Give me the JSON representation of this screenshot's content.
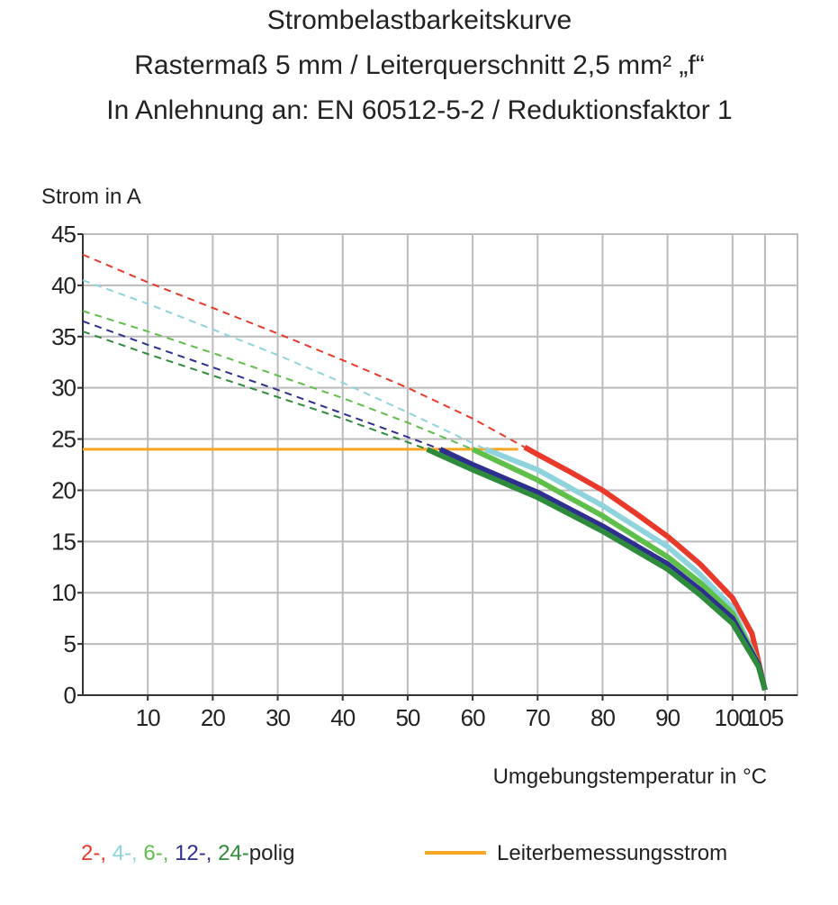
{
  "chart_data": {
    "type": "line",
    "title": [
      "Strombelastbarkeitskurve",
      "Rastermaß 5 mm / Leiterquerschnitt 2,5 mm² „f“",
      "In Anlehnung an: EN 60512-5-2 / Reduktionsfaktor 1"
    ],
    "y_label": "Strom in A",
    "x_label": "Umgebungstemperatur in °C",
    "xlim": [
      0,
      110
    ],
    "xticks": [
      10,
      20,
      30,
      40,
      50,
      60,
      70,
      80,
      90,
      100,
      105
    ],
    "ylim": [
      0,
      45
    ],
    "yticks": [
      0,
      5,
      10,
      15,
      20,
      25,
      30,
      35,
      40,
      45
    ],
    "grid": true,
    "legend_suffix": "polig",
    "series": [
      {
        "name": "2-,",
        "color": "#e8392b",
        "x_dashed": [
          0,
          10,
          20,
          30,
          40,
          50,
          60,
          68
        ],
        "values_dashed": [
          43,
          40.3,
          37.8,
          35.3,
          32.7,
          30,
          27,
          24.2
        ],
        "x": [
          68,
          70,
          75,
          80,
          85,
          90,
          95,
          100,
          103,
          105
        ],
        "values": [
          24.2,
          23.5,
          21.8,
          20,
          17.8,
          15.5,
          12.8,
          9.5,
          6,
          0.5
        ]
      },
      {
        "name": "4-,",
        "color": "#8fd3dc",
        "x_dashed": [
          0,
          10,
          20,
          30,
          40,
          50,
          62
        ],
        "values_dashed": [
          40.5,
          38.2,
          35.7,
          33.2,
          30.5,
          27.6,
          24
        ],
        "x": [
          62,
          70,
          80,
          90,
          95,
          100,
          104,
          105
        ],
        "values": [
          24,
          22,
          18.5,
          14.5,
          11.8,
          8.5,
          3,
          0.5
        ]
      },
      {
        "name": "6-,",
        "color": "#5fbf4a",
        "x_dashed": [
          0,
          10,
          20,
          30,
          40,
          50,
          60
        ],
        "values_dashed": [
          37.5,
          35.5,
          33.4,
          31.2,
          29,
          26.6,
          24
        ],
        "x": [
          60,
          70,
          80,
          90,
          95,
          100,
          104,
          105
        ],
        "values": [
          24,
          21,
          17.5,
          13.5,
          11,
          8,
          3,
          0.5
        ]
      },
      {
        "name": "12-,",
        "color": "#2e2f8f",
        "x_dashed": [
          0,
          10,
          20,
          30,
          40,
          50,
          55
        ],
        "values_dashed": [
          36.5,
          34.2,
          32,
          29.8,
          27.5,
          25.2,
          24
        ],
        "x": [
          55,
          60,
          70,
          80,
          90,
          95,
          100,
          104,
          105
        ],
        "values": [
          24,
          22.5,
          19.8,
          16.5,
          12.8,
          10.3,
          7.5,
          3,
          0.5
        ]
      },
      {
        "name": "24-",
        "color": "#2e8b3c",
        "x_dashed": [
          0,
          10,
          20,
          30,
          40,
          53
        ],
        "values_dashed": [
          35.5,
          33.3,
          31.2,
          29.1,
          27,
          24
        ],
        "x": [
          53,
          60,
          70,
          80,
          90,
          95,
          100,
          104,
          105
        ],
        "values": [
          24,
          22,
          19.3,
          16,
          12.3,
          9.8,
          7,
          2.8,
          0.5
        ]
      }
    ],
    "reference_line": {
      "name": "Leiterbemessungsstrom",
      "color": "#f5a623",
      "x": [
        0,
        67
      ],
      "values": [
        24,
        24
      ]
    }
  }
}
